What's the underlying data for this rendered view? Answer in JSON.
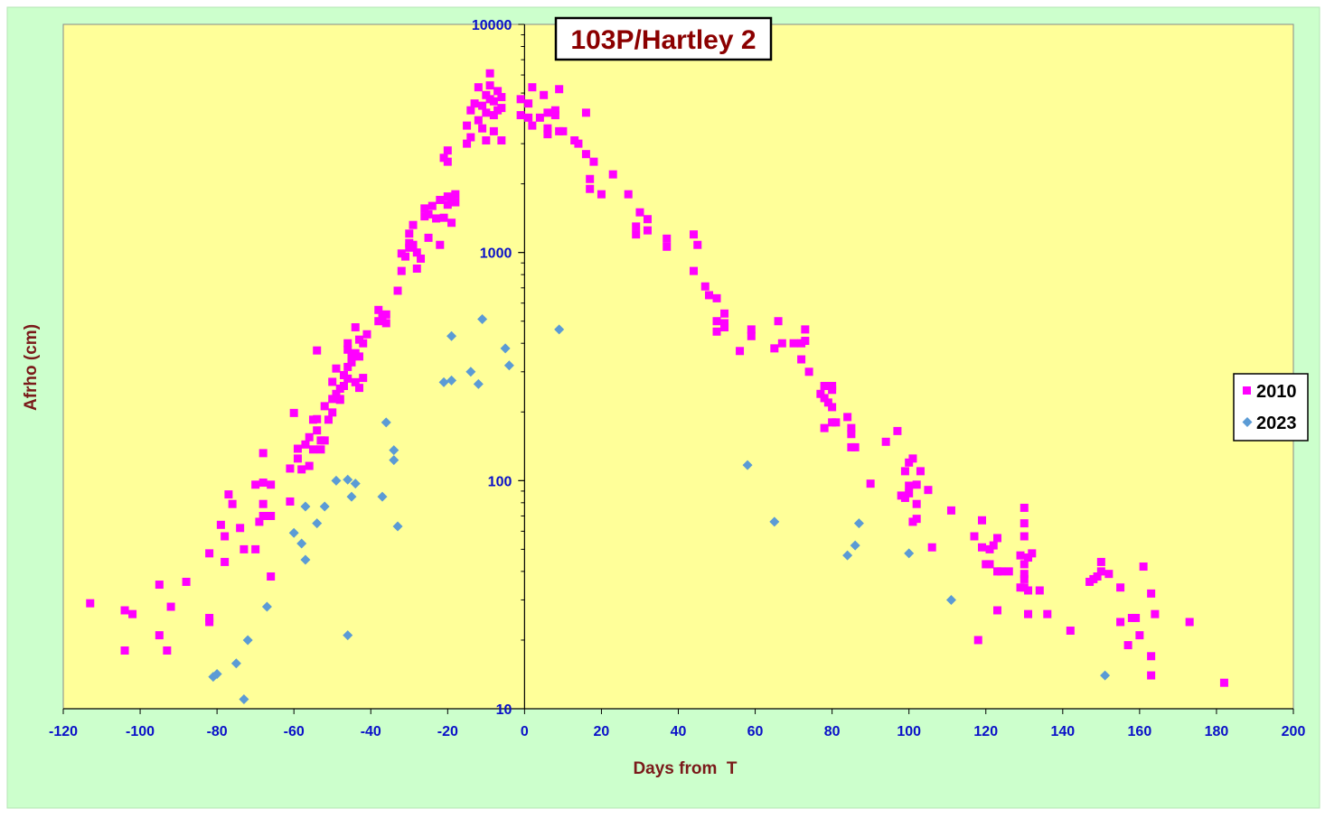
{
  "chart_data": {
    "type": "scatter",
    "title": "103P/Hartley 2",
    "xlabel": "Days from  T",
    "ylabel": "Afrho (cm)",
    "xlim": [
      -120,
      200
    ],
    "ylim": [
      10,
      10000
    ],
    "yscale": "log",
    "x_ticks": [
      "-120",
      "-100",
      "-80",
      "-60",
      "-40",
      "-20",
      "0",
      "20",
      "40",
      "60",
      "80",
      "100",
      "120",
      "140",
      "160",
      "180",
      "200"
    ],
    "y_ticks": [
      "10",
      "100",
      "1000",
      "10000"
    ],
    "grid": false,
    "legend_position": "right",
    "colors": {
      "outer_background": "#ccffcc",
      "plot_background": "#ffff99",
      "tick_labels": "#0a10c8",
      "axis_titles": "#7a1a1a",
      "title": "#8b0000"
    },
    "series": [
      {
        "name": "2010",
        "marker": "square",
        "color": "#ff00ff",
        "points": [
          [
            -113,
            29
          ],
          [
            -104,
            27
          ],
          [
            -104,
            18
          ],
          [
            -102,
            26
          ],
          [
            -95,
            21
          ],
          [
            -95,
            35
          ],
          [
            -93,
            18
          ],
          [
            -92,
            28
          ],
          [
            -88,
            36
          ],
          [
            -82,
            48
          ],
          [
            -82,
            24
          ],
          [
            -82,
            25
          ],
          [
            -79,
            64
          ],
          [
            -78,
            44
          ],
          [
            -78,
            57
          ],
          [
            -77,
            87
          ],
          [
            -76,
            79
          ],
          [
            -74,
            62
          ],
          [
            -73,
            50
          ],
          [
            -70,
            50
          ],
          [
            -70,
            96
          ],
          [
            -69,
            66
          ],
          [
            -68,
            70
          ],
          [
            -68,
            98
          ],
          [
            -68,
            79
          ],
          [
            -68,
            132
          ],
          [
            -66,
            38
          ],
          [
            -66,
            70
          ],
          [
            -66,
            96
          ],
          [
            -61,
            81
          ],
          [
            -61,
            113
          ],
          [
            -60,
            198
          ],
          [
            -59,
            125
          ],
          [
            -59,
            138
          ],
          [
            -58,
            112
          ],
          [
            -57,
            144
          ],
          [
            -56,
            116
          ],
          [
            -56,
            155
          ],
          [
            -55,
            137
          ],
          [
            -55,
            185
          ],
          [
            -54,
            372
          ],
          [
            -54,
            166
          ],
          [
            -54,
            186
          ],
          [
            -53,
            137
          ],
          [
            -53,
            150
          ],
          [
            -52,
            212
          ],
          [
            -52,
            150
          ],
          [
            -51,
            185
          ],
          [
            -50,
            228
          ],
          [
            -50,
            199
          ],
          [
            -50,
            271
          ],
          [
            -49,
            310
          ],
          [
            -49,
            240
          ],
          [
            -48,
            253
          ],
          [
            -48,
            226
          ],
          [
            -48,
            228
          ],
          [
            -47,
            290
          ],
          [
            -47,
            260
          ],
          [
            -46,
            280
          ],
          [
            -46,
            315
          ],
          [
            -46,
            400
          ],
          [
            -46,
            375
          ],
          [
            -45,
            350
          ],
          [
            -45,
            330
          ],
          [
            -44,
            362
          ],
          [
            -44,
            470
          ],
          [
            -44,
            270
          ],
          [
            -43,
            255
          ],
          [
            -43,
            415
          ],
          [
            -43,
            350
          ],
          [
            -42,
            400
          ],
          [
            -42,
            282
          ],
          [
            -41,
            438
          ],
          [
            -38,
            500
          ],
          [
            -38,
            560
          ],
          [
            -37,
            530
          ],
          [
            -36,
            490
          ],
          [
            -36,
            535
          ],
          [
            -33,
            680
          ],
          [
            -32,
            830
          ],
          [
            -32,
            990
          ],
          [
            -31,
            960
          ],
          [
            -30,
            1050
          ],
          [
            -30,
            1210
          ],
          [
            -30,
            1100
          ],
          [
            -29,
            1080
          ],
          [
            -29,
            1320
          ],
          [
            -28,
            850
          ],
          [
            -28,
            1000
          ],
          [
            -27,
            940
          ],
          [
            -26,
            1440
          ],
          [
            -26,
            1560
          ],
          [
            -25,
            1160
          ],
          [
            -25,
            1470
          ],
          [
            -24,
            1600
          ],
          [
            -23,
            1410
          ],
          [
            -22,
            1080
          ],
          [
            -22,
            1700
          ],
          [
            -21,
            1420
          ],
          [
            -20,
            1620
          ],
          [
            -20,
            1760
          ],
          [
            -19,
            1350
          ],
          [
            -19,
            1720
          ],
          [
            -18,
            1800
          ],
          [
            -18,
            1660
          ],
          [
            -20,
            2500
          ],
          [
            -20,
            2800
          ],
          [
            -21,
            2600
          ],
          [
            -15,
            3600
          ],
          [
            -15,
            3000
          ],
          [
            -14,
            3200
          ],
          [
            -14,
            4200
          ],
          [
            -13,
            4500
          ],
          [
            -12,
            5300
          ],
          [
            -12,
            3800
          ],
          [
            -11,
            3500
          ],
          [
            -11,
            4400
          ],
          [
            -10,
            3100
          ],
          [
            -10,
            4900
          ],
          [
            -10,
            4100
          ],
          [
            -9,
            4700
          ],
          [
            -9,
            6100
          ],
          [
            -9,
            5400
          ],
          [
            -8,
            4000
          ],
          [
            -8,
            4600
          ],
          [
            -8,
            3400
          ],
          [
            -7,
            5100
          ],
          [
            -7,
            4200
          ],
          [
            -6,
            3100
          ],
          [
            -6,
            4300
          ],
          [
            -6,
            4800
          ],
          [
            -1,
            4700
          ],
          [
            -1,
            4000
          ],
          [
            1,
            4500
          ],
          [
            1,
            3900
          ],
          [
            2,
            3600
          ],
          [
            2,
            5300
          ],
          [
            4,
            3900
          ],
          [
            5,
            4900
          ],
          [
            6,
            4100
          ],
          [
            6,
            3300
          ],
          [
            6,
            3500
          ],
          [
            8,
            4000
          ],
          [
            8,
            4200
          ],
          [
            9,
            5200
          ],
          [
            9,
            3400
          ],
          [
            10,
            3400
          ],
          [
            13,
            3100
          ],
          [
            14,
            3000
          ],
          [
            16,
            2700
          ],
          [
            16,
            4100
          ],
          [
            17,
            2100
          ],
          [
            17,
            1900
          ],
          [
            18,
            2500
          ],
          [
            20,
            1800
          ],
          [
            23,
            2200
          ],
          [
            27,
            1800
          ],
          [
            29,
            1200
          ],
          [
            29,
            1300
          ],
          [
            30,
            1500
          ],
          [
            32,
            1400
          ],
          [
            32,
            1250
          ],
          [
            37,
            1150
          ],
          [
            37,
            1060
          ],
          [
            44,
            1200
          ],
          [
            44,
            830
          ],
          [
            45,
            1080
          ],
          [
            47,
            710
          ],
          [
            48,
            650
          ],
          [
            50,
            630
          ],
          [
            50,
            500
          ],
          [
            50,
            450
          ],
          [
            52,
            540
          ],
          [
            52,
            470
          ],
          [
            52,
            490
          ],
          [
            56,
            370
          ],
          [
            59,
            430
          ],
          [
            59,
            460
          ],
          [
            65,
            380
          ],
          [
            66,
            500
          ],
          [
            67,
            400
          ],
          [
            70,
            400
          ],
          [
            72,
            400
          ],
          [
            72,
            340
          ],
          [
            73,
            410
          ],
          [
            73,
            460
          ],
          [
            74,
            300
          ],
          [
            77,
            240
          ],
          [
            78,
            260
          ],
          [
            78,
            230
          ],
          [
            79,
            220
          ],
          [
            80,
            260
          ],
          [
            80,
            210
          ],
          [
            80,
            250
          ],
          [
            80,
            180
          ],
          [
            78,
            170
          ],
          [
            81,
            180
          ],
          [
            84,
            190
          ],
          [
            85,
            160
          ],
          [
            85,
            170
          ],
          [
            85,
            140
          ],
          [
            86,
            140
          ],
          [
            90,
            97
          ],
          [
            94,
            148
          ],
          [
            97,
            165
          ],
          [
            98,
            86
          ],
          [
            99,
            110
          ],
          [
            99,
            84
          ],
          [
            100,
            120
          ],
          [
            100,
            95
          ],
          [
            100,
            88
          ],
          [
            101,
            125
          ],
          [
            101,
            66
          ],
          [
            102,
            96
          ],
          [
            102,
            68
          ],
          [
            102,
            79
          ],
          [
            103,
            110
          ],
          [
            105,
            91
          ],
          [
            106,
            51
          ],
          [
            111,
            74
          ],
          [
            117,
            57
          ],
          [
            118,
            20
          ],
          [
            119,
            51
          ],
          [
            119,
            67
          ],
          [
            120,
            43
          ],
          [
            121,
            50
          ],
          [
            121,
            43
          ],
          [
            122,
            52
          ],
          [
            123,
            27
          ],
          [
            123,
            56
          ],
          [
            123,
            40
          ],
          [
            124,
            40
          ],
          [
            126,
            40
          ],
          [
            129,
            34
          ],
          [
            129,
            47
          ],
          [
            130,
            76
          ],
          [
            130,
            65
          ],
          [
            130,
            57
          ],
          [
            130,
            43
          ],
          [
            130,
            39
          ],
          [
            130,
            37
          ],
          [
            130,
            34
          ],
          [
            131,
            33
          ],
          [
            131,
            26
          ],
          [
            131,
            46
          ],
          [
            132,
            48
          ],
          [
            134,
            33
          ],
          [
            136,
            26
          ],
          [
            142,
            22
          ],
          [
            147,
            36
          ],
          [
            148,
            37
          ],
          [
            149,
            38
          ],
          [
            150,
            40
          ],
          [
            150,
            44
          ],
          [
            152,
            39
          ],
          [
            155,
            34
          ],
          [
            155,
            24
          ],
          [
            157,
            19
          ],
          [
            158,
            25
          ],
          [
            159,
            25
          ],
          [
            160,
            21
          ],
          [
            161,
            42
          ],
          [
            163,
            32
          ],
          [
            163,
            17
          ],
          [
            163,
            14
          ],
          [
            164,
            26
          ],
          [
            173,
            24
          ],
          [
            182,
            13
          ]
        ]
      },
      {
        "name": "2023",
        "marker": "diamond",
        "color": "#5b9bd5",
        "points": [
          [
            -81,
            13.8
          ],
          [
            -80,
            14.2
          ],
          [
            -75,
            15.8
          ],
          [
            -73,
            11
          ],
          [
            -72,
            20
          ],
          [
            -67,
            28
          ],
          [
            -60,
            59
          ],
          [
            -58,
            53
          ],
          [
            -57,
            45
          ],
          [
            -57,
            77
          ],
          [
            -54,
            65
          ],
          [
            -52,
            77
          ],
          [
            -49,
            100
          ],
          [
            -46,
            101
          ],
          [
            -46,
            21
          ],
          [
            -45,
            85
          ],
          [
            -44,
            97
          ],
          [
            -37,
            85
          ],
          [
            -36,
            180
          ],
          [
            -34,
            123
          ],
          [
            -34,
            136
          ],
          [
            -33,
            63
          ],
          [
            -21,
            270
          ],
          [
            -19,
            275
          ],
          [
            -19,
            430
          ],
          [
            -14,
            300
          ],
          [
            -12,
            265
          ],
          [
            -11,
            510
          ],
          [
            -5,
            380
          ],
          [
            -4,
            320
          ],
          [
            9,
            460
          ],
          [
            58,
            117
          ],
          [
            65,
            66
          ],
          [
            84,
            47
          ],
          [
            86,
            52
          ],
          [
            87,
            65
          ],
          [
            100,
            48
          ],
          [
            111,
            30
          ],
          [
            151,
            14
          ]
        ]
      }
    ]
  }
}
